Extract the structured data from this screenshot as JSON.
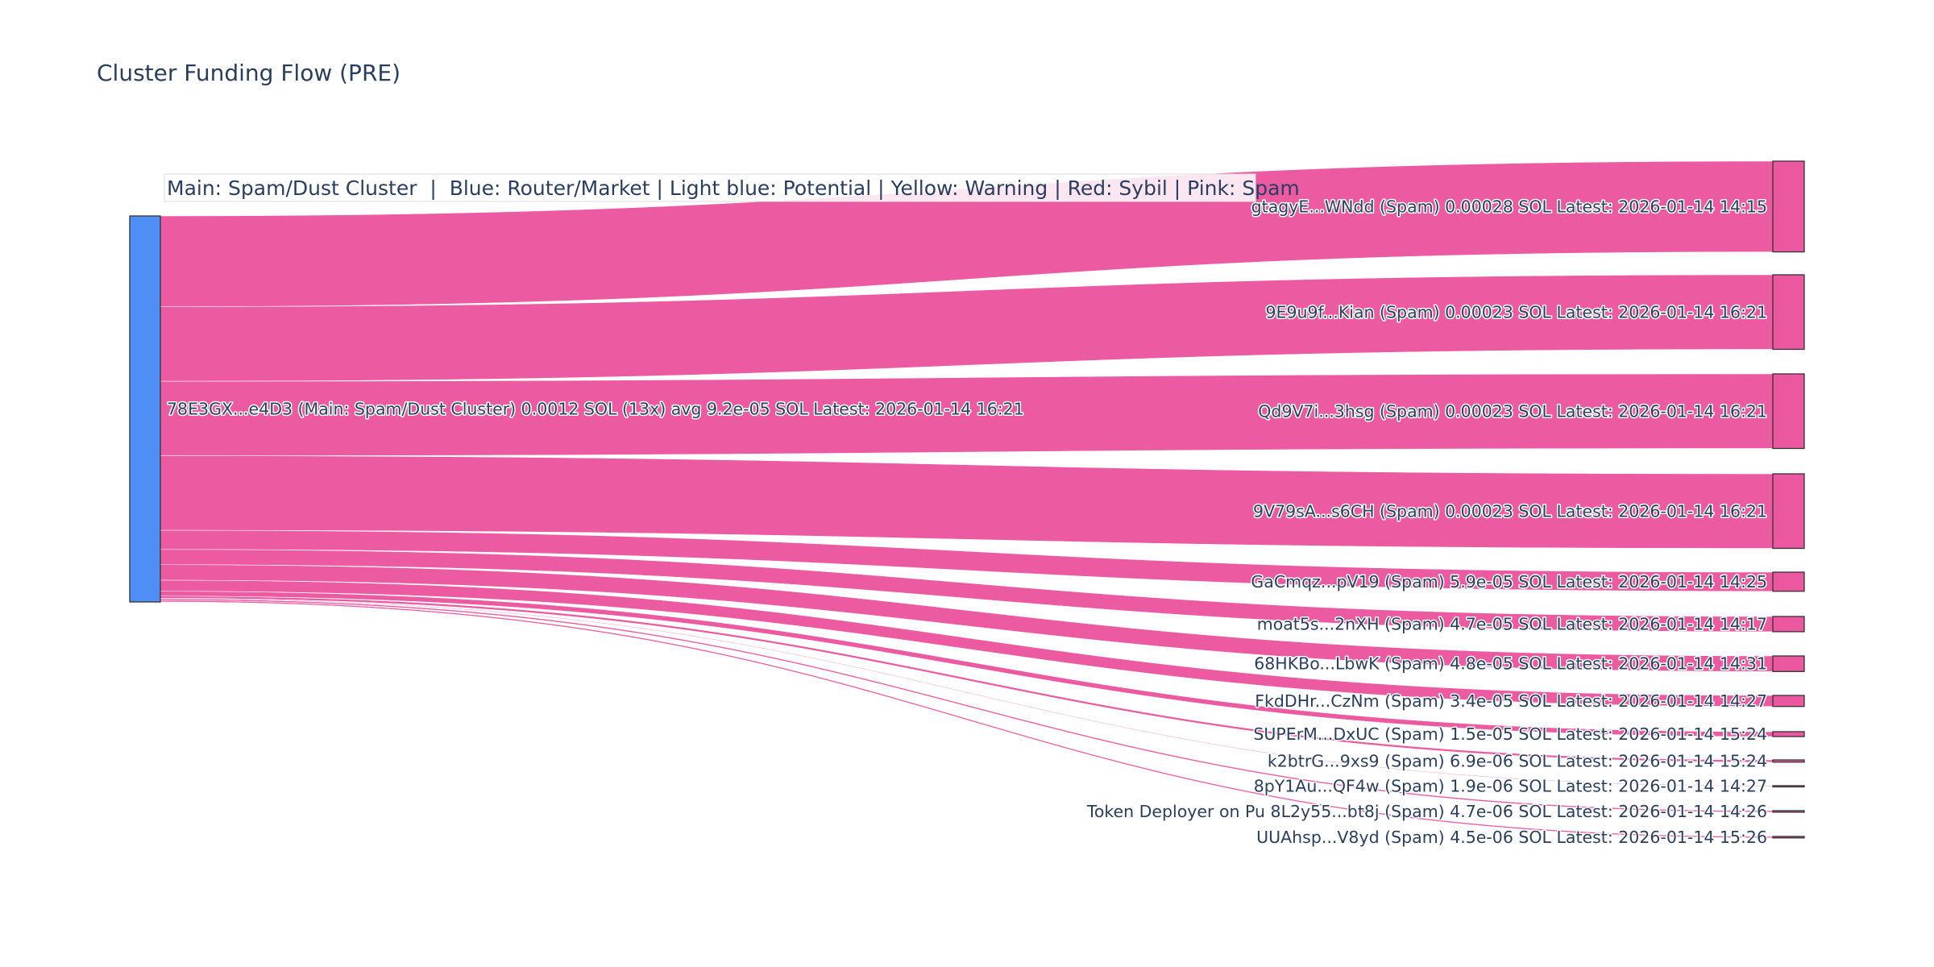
{
  "chart_data": {
    "type": "sankey",
    "title": "Cluster Funding Flow (PRE)",
    "legend_note": "Main: Spam/Dust Cluster  |  Blue: Router/Market | Light blue: Potential | Yellow: Warning | Red: Sybil | Pink: Spam",
    "colors": {
      "source": "#4f8ef5",
      "target": "#ec58a0",
      "link": "#ec58a0",
      "text": "#2a3f5f"
    },
    "source": {
      "label": "78E3GX...e4D3 (Main: Spam/Dust Cluster) 0.0012 SOL (13x) avg 9.2e-05 SOL Latest: 2026-01-14 16:21",
      "value": 0.0012
    },
    "targets": [
      {
        "label": "gtagyE...WNdd (Spam) 0.00028 SOL Latest: 2026-01-14 14:15",
        "value": 0.00028
      },
      {
        "label": "9E9u9f...Kian (Spam) 0.00023 SOL Latest: 2026-01-14 16:21",
        "value": 0.00023
      },
      {
        "label": "Qd9V7i...3hsg (Spam) 0.00023 SOL Latest: 2026-01-14 16:21",
        "value": 0.00023
      },
      {
        "label": "9V79sA...s6CH (Spam) 0.00023 SOL Latest: 2026-01-14 16:21",
        "value": 0.00023
      },
      {
        "label": "GaCmqz...pV19 (Spam) 5.9e-05 SOL Latest: 2026-01-14 14:25",
        "value": 5.9e-05
      },
      {
        "label": "moat5s...2nXH (Spam) 4.7e-05 SOL Latest: 2026-01-14 14:17",
        "value": 4.7e-05
      },
      {
        "label": "68HKBo...LbwK (Spam) 4.8e-05 SOL Latest: 2026-01-14 14:31",
        "value": 4.8e-05
      },
      {
        "label": "FkdDHr...CzNm (Spam) 3.4e-05 SOL Latest: 2026-01-14 14:27",
        "value": 3.4e-05
      },
      {
        "label": "SUPErM...DxUC (Spam) 1.5e-05 SOL Latest: 2026-01-14 15:24",
        "value": 1.5e-05
      },
      {
        "label": "k2btrG...9xs9 (Spam) 6.9e-06 SOL Latest: 2026-01-14 15:24",
        "value": 6.9e-06
      },
      {
        "label": "8pY1Au...QF4w (Spam) 1.9e-06 SOL Latest: 2026-01-14 14:27",
        "value": 1.9e-06
      },
      {
        "label": "Token Deployer on Pu 8L2y55...bt8j (Spam) 4.7e-06 SOL Latest: 2026-01-14 14:26",
        "value": 4.7e-06
      },
      {
        "label": "UUAhsp...V8yd (Spam) 4.5e-06 SOL Latest: 2026-01-14 15:26",
        "value": 4.5e-06
      }
    ]
  }
}
